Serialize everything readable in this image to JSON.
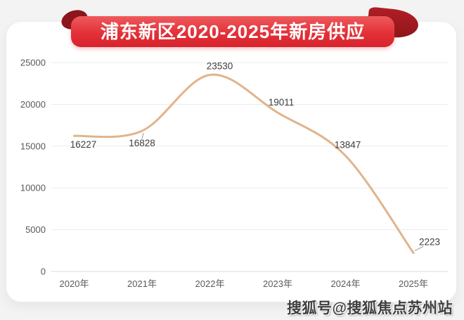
{
  "banner": {
    "title": "浦东新区2020-2025年新房供应",
    "bg_top": "#ee5a5d",
    "bg_bottom": "#d8232c",
    "fold_color": "#8c161c"
  },
  "watermark": {
    "text": "搜狐号@搜狐焦点苏州站"
  },
  "chart_data": {
    "type": "line",
    "smooth": true,
    "title": "浦东新区2020-2025年新房供应",
    "categories": [
      "2020年",
      "2021年",
      "2022年",
      "2023年",
      "2024年",
      "2025年"
    ],
    "series": [
      {
        "name": "新房供应",
        "values": [
          16227,
          16828,
          23530,
          19011,
          13847,
          2223
        ]
      }
    ],
    "y_ticks": [
      0,
      5000,
      10000,
      15000,
      20000,
      25000
    ],
    "ylim": [
      0,
      25000
    ],
    "grid": true,
    "legend_position": "none",
    "line_color": "#e1b48c",
    "grid_color": "#ececec",
    "baseline_color": "#d8d8d8",
    "axis_label_color": "#5a5a5a",
    "data_label_color": "#3d3d3d",
    "connector_color": "#9a9a9a"
  }
}
